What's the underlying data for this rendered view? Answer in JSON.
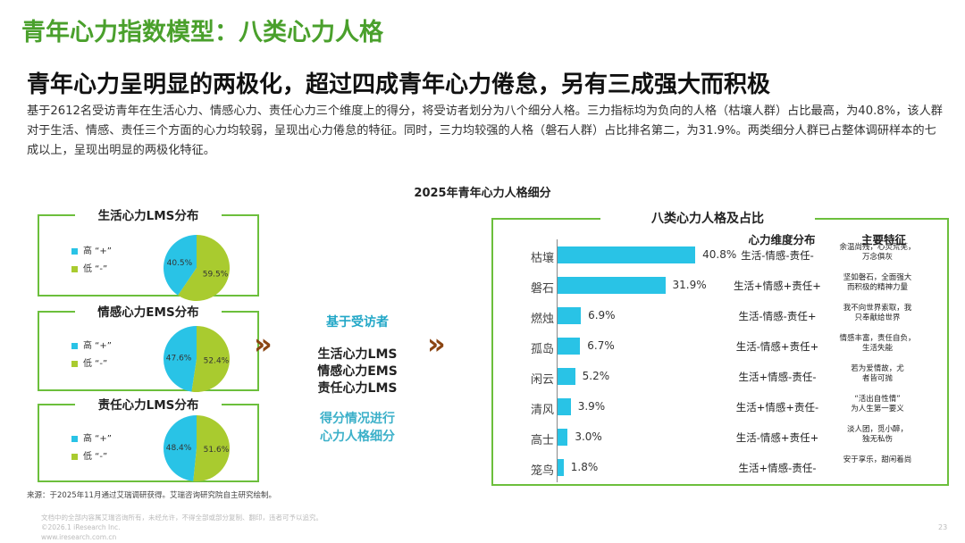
{
  "title": "青年心力指数模型：八类心力人格",
  "subtitle": "青年心力呈明显的两极化，超过四成青年心力倦怠，另有三成强大而积极",
  "description": "基于2612名受访青年在生活心力、情感心力、责任心力三个维度上的得分，将受访者划分为八个细分人格。三力指标均为负向的人格（枯壤人群）占比最高，为40.8%，该人群对于生活、情感、责任三个方面的心力均较弱，呈现出心力倦怠的特征。同时，三力均较强的人格（磐石人群）占比排名第二，为31.9%。两类细分人群已占整体调研样本的七成以上，呈现出明显的两极化特征。",
  "figure_title": "2025年青年心力人格细分",
  "colors": {
    "accent_green": "#6cbf3c",
    "blue": "#29c3e6",
    "lime": "#a9cb2f",
    "title_green": "#4aa02c",
    "chevron": "#8b4513"
  },
  "legend": {
    "high": "高 “+”",
    "low": "低 “-”"
  },
  "chevron_icon": "»",
  "middle": {
    "head": "基于受访者",
    "lines": [
      "生活心力LMS",
      "情感心力EMS",
      "责任心力LMS"
    ],
    "foot": [
      "得分情况进行",
      "心力人格细分"
    ]
  },
  "right": {
    "title": "八类心力人格及占比",
    "col_dist": "心力维度分布",
    "col_feat": "主要特征"
  },
  "chart_data": [
    {
      "type": "pie",
      "title": "生活心力LMS分布",
      "slices": [
        {
          "label": "高 “+”",
          "value": 40.5,
          "display": "40.5%"
        },
        {
          "label": "低 “-”",
          "value": 59.5,
          "display": "59.5%"
        }
      ]
    },
    {
      "type": "pie",
      "title": "情感心力EMS分布",
      "slices": [
        {
          "label": "高 “+”",
          "value": 47.6,
          "display": "47.6%"
        },
        {
          "label": "低 “-”",
          "value": 52.4,
          "display": "52.4%"
        }
      ]
    },
    {
      "type": "pie",
      "title": "责任心力LMS分布",
      "slices": [
        {
          "label": "高 “+”",
          "value": 48.4,
          "display": "48.4%"
        },
        {
          "label": "低 “-”",
          "value": 51.6,
          "display": "51.6%"
        }
      ]
    },
    {
      "type": "bar",
      "orientation": "horizontal",
      "title": "八类心力人格及占比",
      "categories": [
        "枯壤",
        "磐石",
        "燃烛",
        "孤岛",
        "闲云",
        "清风",
        "高士",
        "笼鸟"
      ],
      "values": [
        40.8,
        31.9,
        6.9,
        6.7,
        5.2,
        3.9,
        3.0,
        1.8
      ],
      "value_labels": [
        "40.8%",
        "31.9%",
        "6.9%",
        "6.7%",
        "5.2%",
        "3.9%",
        "3.0%",
        "1.8%"
      ],
      "xlim": [
        0,
        45
      ],
      "dimensions": [
        "生活-情感-责任-",
        "生活+情感+责任+",
        "生活-情感-责任+",
        "生活-情感+责任+",
        "生活+情感-责任-",
        "生活+情感+责任-",
        "生活-情感+责任+",
        "生活+情感-责任-"
      ],
      "features": [
        [
          "余温尚残，心灵荒芜，",
          "万念俱灰"
        ],
        [
          "坚如磐石，全面强大",
          "而积极的精神力量"
        ],
        [
          "我不向世界索取，我",
          "只奉献给世界"
        ],
        [
          "情感丰富，责任自负，",
          "生活失能"
        ],
        [
          "若为爱情故，尤",
          "者皆可抛"
        ],
        [
          "“活出自性情”",
          "为人生第一要义"
        ],
        [
          "淡人团，觅小醉，",
          "独无私伤"
        ],
        [
          "安于享乐，甜闲着尚",
          ""
        ]
      ]
    }
  ],
  "source": "来源：于2025年11月通过艾瑞调研获得。艾瑞咨询研究院自主研究绘制。",
  "footer": {
    "line1": "文档中的全部内容属艾瑞咨询所有，未经允许，不得全部或部分复制、翻印，违者可予以追究。",
    "line2": "©2026.1 iResearch Inc.",
    "line3": "www.iresearch.com.cn",
    "page": "23"
  }
}
